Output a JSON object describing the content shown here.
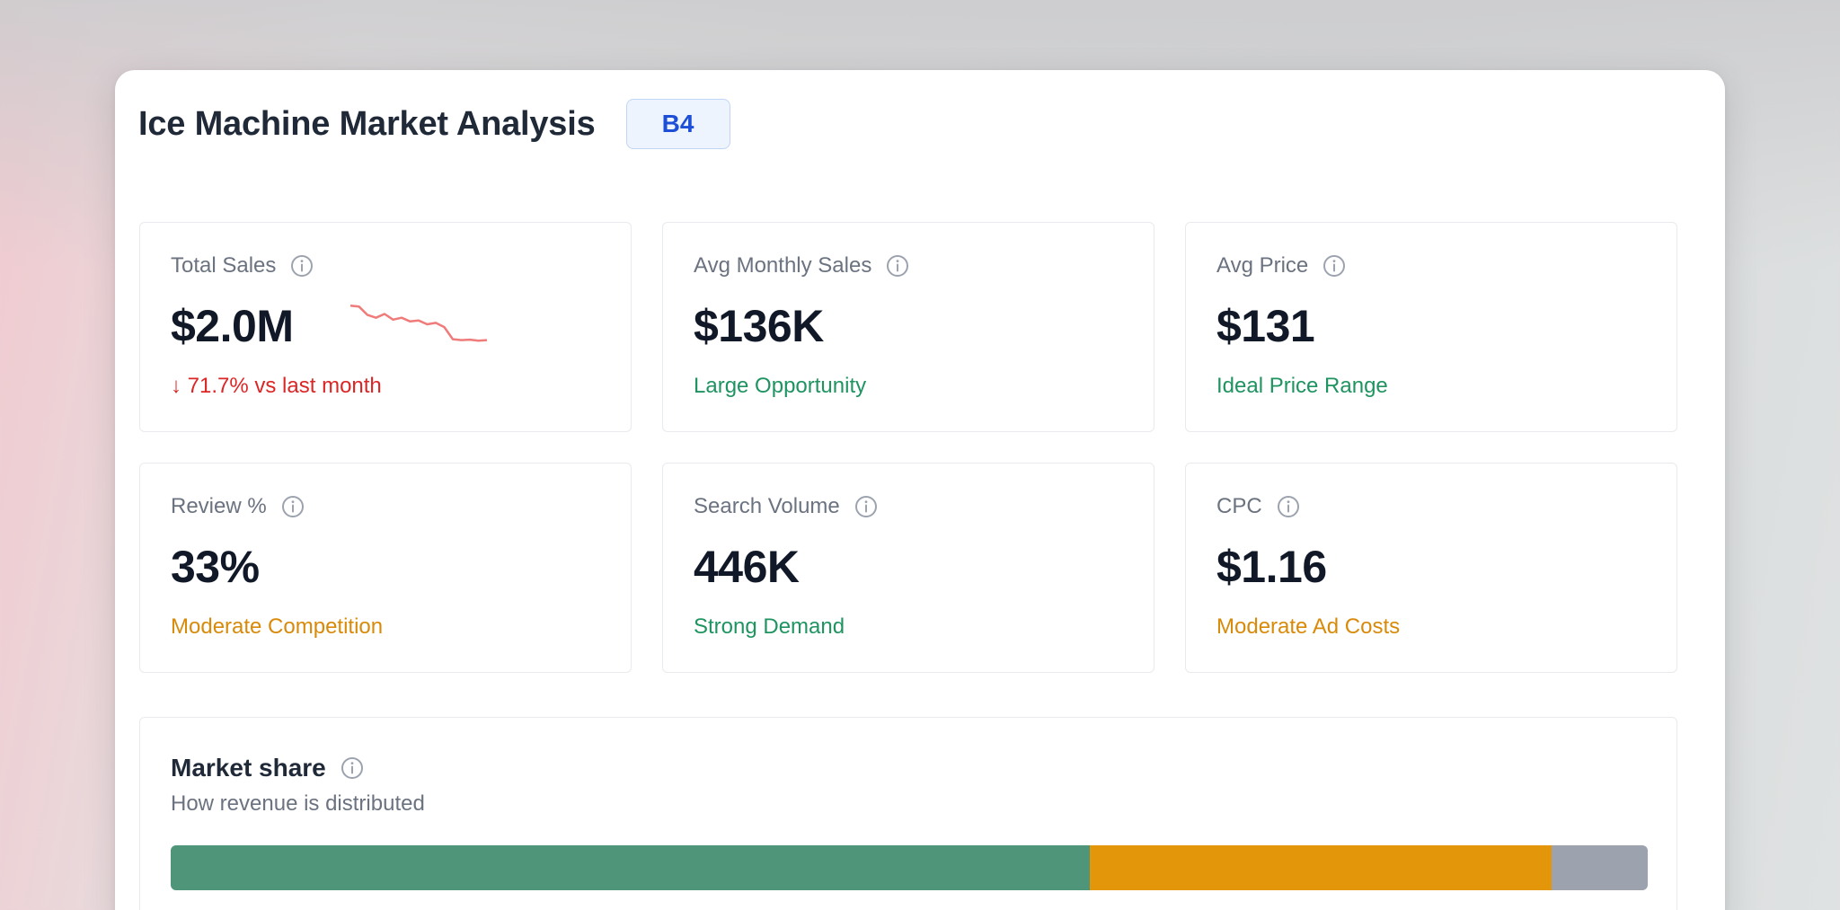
{
  "header": {
    "title": "Ice Machine Market Analysis",
    "badge": "B4"
  },
  "cards": [
    {
      "label": "Total Sales",
      "value": "$2.0M",
      "sub": "↓ 71.7% vs last month",
      "sub_color": "#dc2626",
      "icon": "info-icon",
      "has_sparkline": true
    },
    {
      "label": "Avg Monthly Sales",
      "value": "$136K",
      "sub": "Large Opportunity",
      "sub_color": "#1f9461",
      "icon": "info-icon"
    },
    {
      "label": "Avg Price",
      "value": "$131",
      "sub": "Ideal Price Range",
      "sub_color": "#1f9461",
      "icon": "info-icon"
    },
    {
      "label": "Review %",
      "value": "33%",
      "sub": "Moderate Competition",
      "sub_color": "#d88a0a",
      "icon": "info-icon"
    },
    {
      "label": "Search Volume",
      "value": "446K",
      "sub": "Strong Demand",
      "sub_color": "#1f9461",
      "icon": "info-icon"
    },
    {
      "label": "CPC",
      "value": "$1.16",
      "sub": "Moderate Ad Costs",
      "sub_color": "#d88a0a",
      "icon": "info-icon"
    }
  ],
  "sparkline": {
    "color": "#f07b7b",
    "values": [
      0.92,
      0.9,
      0.72,
      0.66,
      0.74,
      0.62,
      0.66,
      0.58,
      0.6,
      0.52,
      0.55,
      0.46,
      0.2,
      0.18,
      0.19,
      0.17,
      0.18
    ]
  },
  "market_share": {
    "title": "Market share",
    "subtitle": "How revenue is distributed",
    "icon": "info-icon",
    "segments": [
      {
        "fraction": 0.622,
        "color": "#4e957a"
      },
      {
        "fraction": 0.313,
        "color": "#e3960a"
      },
      {
        "fraction": 0.065,
        "color": "#9ca3af"
      }
    ]
  },
  "colors": {
    "badge_text": "#1d4ed8",
    "title_text": "#1f2937"
  }
}
